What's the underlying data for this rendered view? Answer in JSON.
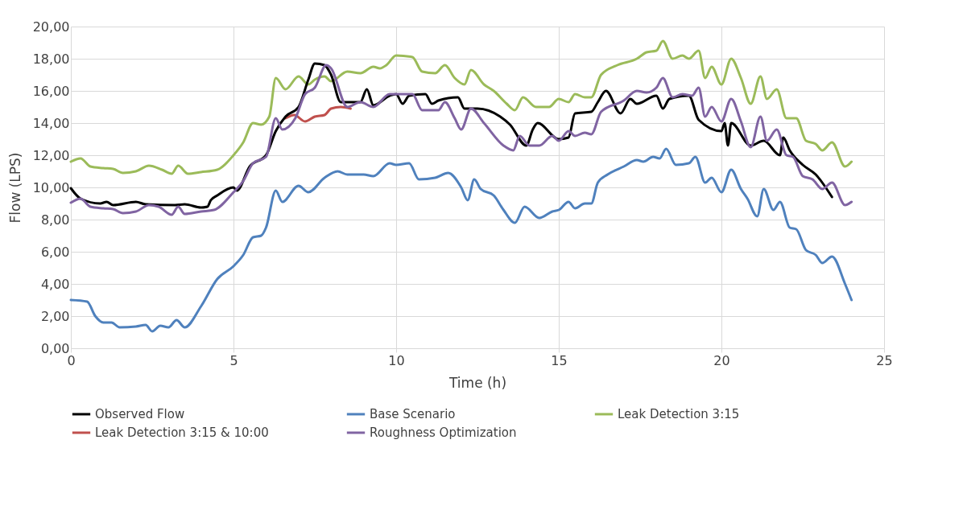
{
  "chart_data": {
    "type": "line",
    "xlabel": "Time (h)",
    "ylabel": "Flow (LPS)",
    "xlim": [
      0,
      25
    ],
    "xticks": [
      0,
      5,
      10,
      15,
      20,
      25
    ],
    "ylim": [
      0,
      20
    ],
    "yticks": [
      {
        "value": 0,
        "label": "0,00"
      },
      {
        "value": 2,
        "label": "2,00"
      },
      {
        "value": 4,
        "label": "4,00"
      },
      {
        "value": 6,
        "label": "6,00"
      },
      {
        "value": 8,
        "label": "8,00"
      },
      {
        "value": 10,
        "label": "10,00"
      },
      {
        "value": 12,
        "label": "12,00"
      },
      {
        "value": 14,
        "label": "14,00"
      },
      {
        "value": 16,
        "label": "16,00"
      },
      {
        "value": 18,
        "label": "18,00"
      },
      {
        "value": 20,
        "label": "20,00"
      }
    ],
    "grid": true,
    "legend": "bottom",
    "line_style": "solid",
    "series": [
      {
        "name": "Base Scenario",
        "color": "#4f81bd",
        "x": [
          0,
          0.5,
          0.75,
          1.0,
          1.25,
          1.5,
          2,
          2.3,
          2.5,
          2.75,
          3.0,
          3.25,
          3.5,
          4,
          4.5,
          5,
          5.3,
          5.6,
          5.85,
          6.0,
          6.3,
          6.5,
          7.0,
          7.3,
          7.8,
          8.2,
          8.5,
          9.0,
          9.3,
          9.8,
          10.0,
          10.4,
          10.7,
          11.2,
          11.6,
          12.0,
          12.2,
          12.4,
          12.6,
          13.0,
          13.3,
          13.65,
          13.95,
          14.4,
          14.8,
          15.0,
          15.3,
          15.5,
          15.8,
          16.0,
          16.2,
          16.5,
          17.0,
          17.4,
          17.6,
          17.9,
          18.1,
          18.3,
          18.6,
          19.0,
          19.2,
          19.5,
          19.7,
          20.0,
          20.3,
          20.6,
          20.8,
          21.1,
          21.3,
          21.6,
          21.8,
          22.1,
          22.3,
          22.6,
          22.9,
          23.1,
          23.4,
          23.8,
          24.0
        ],
        "values": [
          3.0,
          2.9,
          2.0,
          1.6,
          1.6,
          1.3,
          1.35,
          1.45,
          1.05,
          1.4,
          1.3,
          1.75,
          1.3,
          2.6,
          4.3,
          5.1,
          5.8,
          6.9,
          7.0,
          7.5,
          9.8,
          9.1,
          10.1,
          9.7,
          10.6,
          11.0,
          10.8,
          10.8,
          10.7,
          11.5,
          11.4,
          11.5,
          10.5,
          10.6,
          10.9,
          10.0,
          9.2,
          10.5,
          9.9,
          9.5,
          8.6,
          7.8,
          8.8,
          8.1,
          8.5,
          8.6,
          9.1,
          8.7,
          9.0,
          9.0,
          10.3,
          10.8,
          11.3,
          11.7,
          11.6,
          11.9,
          11.8,
          12.4,
          11.4,
          11.5,
          11.9,
          10.3,
          10.6,
          9.7,
          11.1,
          9.9,
          9.3,
          8.2,
          9.9,
          8.6,
          9.1,
          7.5,
          7.4,
          6.1,
          5.8,
          5.3,
          5.7,
          4.0,
          3.0
        ]
      },
      {
        "name": "Leak Detection 3:15",
        "color": "#9bbb59",
        "x": [
          0,
          0.3,
          0.6,
          1.0,
          1.3,
          1.6,
          2.0,
          2.4,
          2.8,
          3.1,
          3.3,
          3.6,
          4.0,
          4.5,
          5.0,
          5.3,
          5.6,
          5.85,
          6.1,
          6.3,
          6.6,
          7.0,
          7.3,
          7.5,
          7.8,
          8.0,
          8.5,
          8.9,
          9.3,
          9.5,
          9.7,
          10.0,
          10.5,
          10.8,
          11.2,
          11.5,
          11.8,
          12.1,
          12.3,
          12.7,
          13.0,
          13.4,
          13.65,
          13.9,
          14.3,
          14.7,
          15.0,
          15.3,
          15.5,
          15.8,
          16.0,
          16.3,
          16.8,
          17.4,
          17.7,
          18.0,
          18.2,
          18.5,
          18.8,
          19.0,
          19.3,
          19.5,
          19.7,
          20.0,
          20.3,
          20.6,
          20.9,
          21.2,
          21.4,
          21.7,
          22.0,
          22.3,
          22.6,
          22.9,
          23.1,
          23.4,
          23.8,
          24.0
        ],
        "values": [
          11.6,
          11.8,
          11.3,
          11.2,
          11.15,
          10.9,
          11.0,
          11.35,
          11.1,
          10.85,
          11.35,
          10.85,
          10.95,
          11.1,
          12.0,
          12.8,
          14.0,
          13.9,
          14.4,
          16.8,
          16.1,
          16.9,
          16.4,
          16.7,
          16.9,
          16.6,
          17.2,
          17.1,
          17.5,
          17.4,
          17.6,
          18.2,
          18.1,
          17.2,
          17.1,
          17.6,
          16.8,
          16.4,
          17.3,
          16.4,
          16.0,
          15.2,
          14.8,
          15.6,
          15.0,
          15.0,
          15.5,
          15.3,
          15.8,
          15.6,
          15.6,
          17.0,
          17.6,
          18.0,
          18.4,
          18.5,
          19.1,
          18.0,
          18.2,
          18.0,
          18.5,
          16.8,
          17.5,
          16.4,
          18.0,
          16.8,
          15.2,
          16.9,
          15.5,
          16.1,
          14.3,
          14.3,
          12.9,
          12.7,
          12.3,
          12.8,
          11.3,
          11.6
        ]
      },
      {
        "name": "Leak Detection 3:15 & 10:00",
        "color": "#c0504d",
        "x": [
          6.6,
          6.87,
          7.2,
          7.5,
          7.8,
          8.0,
          8.3,
          8.6
        ],
        "values": [
          14.3,
          14.5,
          14.1,
          14.4,
          14.5,
          14.9,
          15.0,
          14.9
        ]
      },
      {
        "name": "Observed Flow",
        "color": "#000000",
        "x": [
          0,
          0.3,
          0.9,
          1.1,
          1.3,
          2,
          2.3,
          3.2,
          3.5,
          4.0,
          4.2,
          4.3,
          4.5,
          5.0,
          5.1,
          5.5,
          6.0,
          6.3,
          6.6,
          7.0,
          7.3,
          7.5,
          7.8,
          8.0,
          8.3,
          8.9,
          9.1,
          9.3,
          9.8,
          10.0,
          10.2,
          10.4,
          10.9,
          11.1,
          11.3,
          11.9,
          12.1,
          12.5,
          13.2,
          13.5,
          14.0,
          14.2,
          14.35,
          15.0,
          15.3,
          15.5,
          16.0,
          16.2,
          16.45,
          16.9,
          17.2,
          17.4,
          18.0,
          18.2,
          18.4,
          19.0,
          19.3,
          20.0,
          20.1,
          20.2,
          20.3,
          20.9,
          21.3,
          21.8,
          21.9,
          22.1,
          22.5,
          22.9,
          23.4
        ],
        "values": [
          9.95,
          9.3,
          9.0,
          9.1,
          8.9,
          9.1,
          8.95,
          8.9,
          8.95,
          8.75,
          8.8,
          9.2,
          9.5,
          10.0,
          9.8,
          11.3,
          12.0,
          13.5,
          14.4,
          15.0,
          16.7,
          17.7,
          17.6,
          17.0,
          15.3,
          15.3,
          16.1,
          15.1,
          15.7,
          15.8,
          15.2,
          15.7,
          15.8,
          15.2,
          15.4,
          15.6,
          14.9,
          14.9,
          14.4,
          13.9,
          12.6,
          13.6,
          14.0,
          13.0,
          13.1,
          14.6,
          14.7,
          15.3,
          16.0,
          14.6,
          15.5,
          15.2,
          15.7,
          14.9,
          15.5,
          15.7,
          14.2,
          13.5,
          14.0,
          12.6,
          14.0,
          12.6,
          12.9,
          12.0,
          13.1,
          12.3,
          11.4,
          10.8,
          9.4
        ]
      },
      {
        "name": "Roughness Optimization",
        "color": "#8064a2",
        "x": [
          0,
          0.3,
          0.6,
          1,
          1.3,
          1.6,
          2.0,
          2.4,
          2.7,
          3.1,
          3.3,
          3.5,
          4.0,
          4.4,
          5.0,
          5.3,
          5.6,
          6.0,
          6.3,
          6.5,
          6.9,
          7.2,
          7.5,
          7.85,
          8.0,
          8.5,
          8.9,
          9.3,
          9.8,
          10.5,
          10.8,
          11.3,
          11.5,
          11.8,
          12.0,
          12.3,
          12.7,
          13.3,
          13.6,
          13.8,
          14.1,
          14.4,
          14.8,
          15.0,
          15.3,
          15.5,
          15.8,
          16.0,
          16.3,
          17.0,
          17.4,
          17.7,
          18.0,
          18.2,
          18.5,
          18.8,
          19.1,
          19.3,
          19.5,
          19.7,
          20.0,
          20.3,
          20.6,
          20.9,
          21.2,
          21.4,
          21.7,
          22.0,
          22.2,
          22.5,
          22.8,
          23.1,
          23.4,
          23.8,
          24.0
        ],
        "values": [
          9.05,
          9.3,
          8.8,
          8.7,
          8.65,
          8.4,
          8.5,
          8.9,
          8.8,
          8.3,
          8.8,
          8.35,
          8.5,
          8.6,
          9.7,
          10.4,
          11.5,
          11.9,
          14.3,
          13.6,
          14.3,
          15.8,
          16.2,
          17.6,
          17.4,
          15.0,
          15.3,
          15.0,
          15.8,
          15.8,
          14.8,
          14.8,
          15.3,
          14.3,
          13.6,
          14.9,
          14.0,
          12.6,
          12.3,
          13.2,
          12.6,
          12.6,
          13.2,
          12.9,
          13.5,
          13.2,
          13.4,
          13.3,
          14.7,
          15.4,
          16.0,
          15.9,
          16.2,
          16.8,
          15.6,
          15.8,
          15.7,
          16.2,
          14.4,
          15.0,
          14.1,
          15.5,
          14.1,
          12.5,
          14.4,
          12.9,
          13.6,
          12.0,
          11.9,
          10.7,
          10.5,
          9.9,
          10.3,
          8.9,
          9.1
        ]
      }
    ]
  }
}
